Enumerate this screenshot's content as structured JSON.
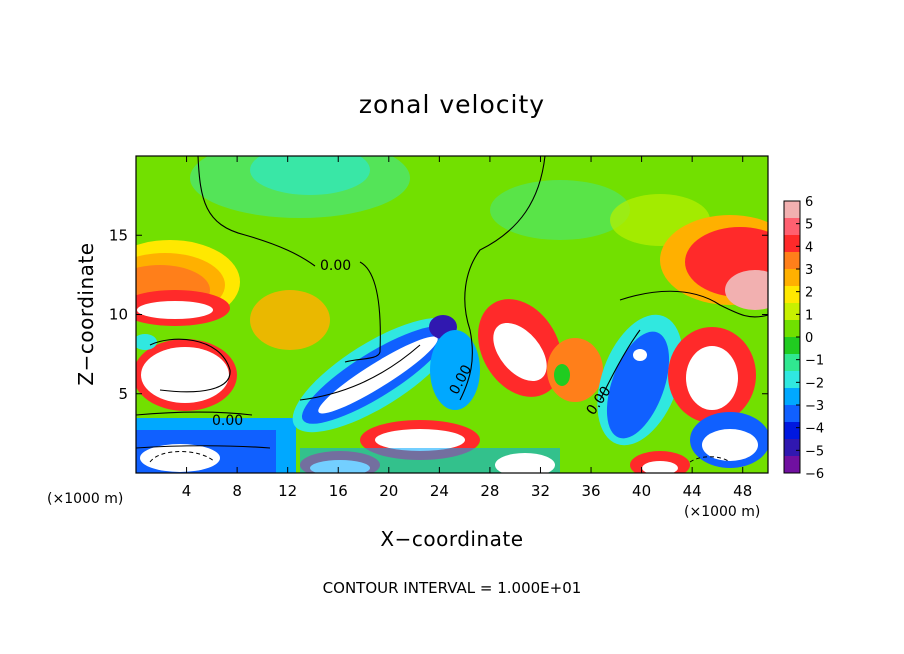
{
  "chart_data": {
    "type": "heatmap",
    "title": "zonal velocity",
    "xlabel": "X−coordinate",
    "ylabel": "Z−coordinate",
    "x_unit_left": "(×1000 m)",
    "x_unit_right": "(×1000 m)",
    "xlim": [
      0,
      50
    ],
    "ylim": [
      0,
      20
    ],
    "x_ticks": [
      "4",
      "8",
      "12",
      "16",
      "20",
      "24",
      "28",
      "32",
      "36",
      "40",
      "44",
      "48"
    ],
    "y_ticks": [
      "5",
      "10",
      "15"
    ],
    "colorbar": {
      "ticks": [
        "6",
        "5",
        "4",
        "3",
        "2",
        "1",
        "0",
        "−1",
        "−2",
        "−3",
        "−4",
        "−5",
        "−6"
      ],
      "range": [
        -6,
        6
      ],
      "colors": [
        "#f2b0b0",
        "#ff6070",
        "#ff2a2a",
        "#ff7f1a",
        "#ffb000",
        "#ffe800",
        "#c8f000",
        "#70e000",
        "#20cc20",
        "#30e890",
        "#30e8e0",
        "#00a8ff",
        "#1060ff",
        "#0018e0",
        "#3018b0",
        "#7010a0"
      ]
    },
    "contour_labels": [
      "0.00",
      "0.00",
      "0.00",
      "0.00"
    ],
    "footer_note": "CONTOUR INTERVAL = 1.000E+01"
  }
}
